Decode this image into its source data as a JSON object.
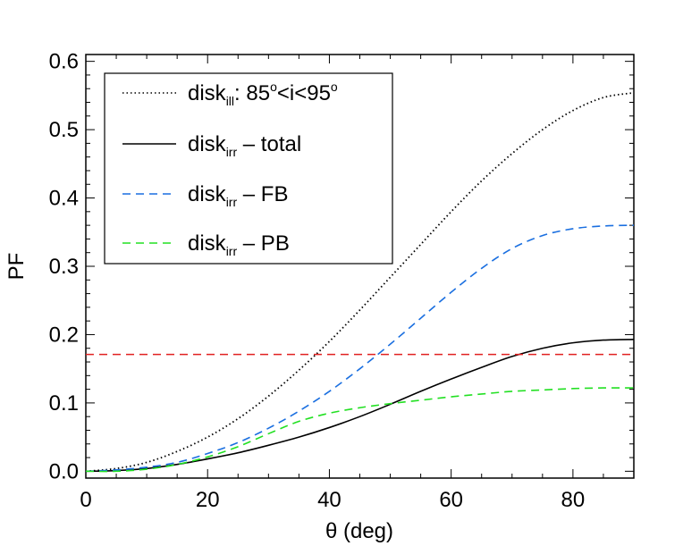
{
  "chart_data": {
    "type": "line",
    "xlabel": "θ (deg)",
    "ylabel": "PF",
    "xlim": [
      0,
      90
    ],
    "ylim": [
      -0.01,
      0.61
    ],
    "xticks": [
      0,
      20,
      40,
      60,
      80
    ],
    "xtick_labels": [
      "0",
      "20",
      "40",
      "60",
      "80"
    ],
    "yticks": [
      0.0,
      0.1,
      0.2,
      0.3,
      0.4,
      0.5,
      0.6
    ],
    "ytick_labels": [
      "0.0",
      "0.1",
      "0.2",
      "0.3",
      "0.4",
      "0.5",
      "0.6"
    ],
    "grid": false,
    "legend_position": "top-left",
    "x": [
      0,
      5,
      10,
      15,
      20,
      25,
      30,
      35,
      40,
      45,
      50,
      55,
      60,
      65,
      70,
      75,
      80,
      85,
      90
    ],
    "series": [
      {
        "name": "disk_ill: 85°<i<95°",
        "legend": {
          "main": "disk",
          "sub": "ill",
          "rest": ": 85",
          "sup1": "o",
          "mid": "<i<95",
          "sup2": "o"
        },
        "color": "#000000",
        "dash": "dotted",
        "values": [
          0.0,
          0.004,
          0.013,
          0.029,
          0.05,
          0.077,
          0.11,
          0.148,
          0.19,
          0.236,
          0.284,
          0.332,
          0.38,
          0.425,
          0.465,
          0.5,
          0.528,
          0.547,
          0.554
        ]
      },
      {
        "name": "disk_irr – total",
        "legend": {
          "main": "disk",
          "sub": "irr",
          "rest": " – total"
        },
        "color": "#000000",
        "dash": "solid",
        "values": [
          0.0,
          0.001,
          0.004,
          0.01,
          0.018,
          0.027,
          0.038,
          0.05,
          0.064,
          0.08,
          0.098,
          0.117,
          0.135,
          0.152,
          0.168,
          0.18,
          0.188,
          0.192,
          0.193
        ]
      },
      {
        "name": "disk_irr – FB",
        "legend": {
          "main": "disk",
          "sub": "irr",
          "rest": " – FB"
        },
        "color": "#1a6fe0",
        "dash": "dashed",
        "values": [
          0.0,
          0.002,
          0.006,
          0.013,
          0.026,
          0.042,
          0.063,
          0.088,
          0.117,
          0.15,
          0.186,
          0.224,
          0.262,
          0.297,
          0.326,
          0.345,
          0.355,
          0.359,
          0.36
        ]
      },
      {
        "name": "disk_irr – PB",
        "legend": {
          "main": "disk",
          "sub": "irr",
          "rest": " – PB"
        },
        "color": "#22e022",
        "dash": "dashed",
        "values": [
          0.0,
          0.0,
          0.003,
          0.01,
          0.021,
          0.036,
          0.055,
          0.073,
          0.085,
          0.093,
          0.099,
          0.104,
          0.109,
          0.113,
          0.117,
          0.119,
          0.121,
          0.122,
          0.122
        ]
      },
      {
        "color": "#e02020",
        "dash": "dashed",
        "values": [
          0.171,
          0.171,
          0.171,
          0.171,
          0.171,
          0.171,
          0.171,
          0.171,
          0.171,
          0.171,
          0.171,
          0.171,
          0.171,
          0.171,
          0.171,
          0.171,
          0.171,
          0.171,
          0.171
        ]
      }
    ]
  }
}
